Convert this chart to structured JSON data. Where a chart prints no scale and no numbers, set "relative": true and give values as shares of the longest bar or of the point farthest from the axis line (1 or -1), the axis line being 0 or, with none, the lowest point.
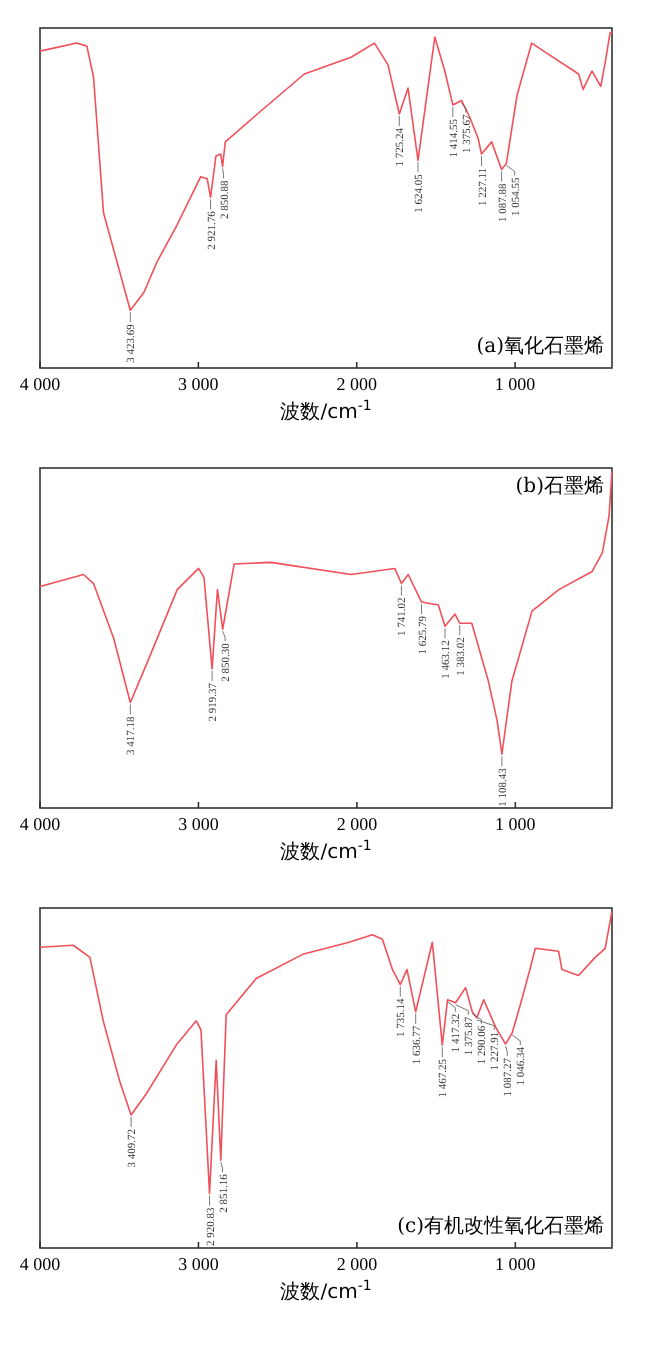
{
  "chart_data": [
    {
      "type": "line",
      "relative": true,
      "tick_labels": "x",
      "xlabel": "波数/cm$^{-1}$",
      "xlim": [
        4000,
        388
      ],
      "xticks": [
        {
          "value": 4000,
          "label": "4 000"
        },
        {
          "value": 3000,
          "label": "3 000"
        },
        {
          "value": 2000,
          "label": "2 000"
        },
        {
          "value": 1000,
          "label": "1 000"
        }
      ],
      "x": [
        4000,
        3768,
        3704,
        3662,
        3599,
        3514,
        3430,
        3345,
        3261,
        3134,
        2986,
        2944,
        2923,
        2889,
        2859,
        2847,
        2830,
        2627,
        2331,
        2036,
        1888,
        1803,
        1731,
        1676,
        1613,
        1507,
        1444,
        1393,
        1338,
        1287,
        1233,
        1212,
        1148,
        1085,
        1055,
        988,
        895,
        810,
        599,
        570,
        515,
        459,
        430,
        400,
        388
      ],
      "series": [
        {
          "color": "#f0505a",
          "values": [
            0.943,
            0.967,
            0.958,
            0.866,
            0.462,
            0.316,
            0.172,
            0.224,
            0.316,
            0.426,
            0.569,
            0.563,
            0.508,
            0.631,
            0.637,
            0.6,
            0.673,
            0.756,
            0.875,
            0.925,
            0.967,
            0.903,
            0.756,
            0.833,
            0.618,
            0.985,
            0.884,
            0.783,
            0.796,
            0.747,
            0.683,
            0.637,
            0.673,
            0.591,
            0.609,
            0.811,
            0.967,
            0.94,
            0.875,
            0.829,
            0.884,
            0.838,
            0.912,
            0.998,
            1.0
          ]
        }
      ],
      "annotations": [
        {
          "text": "3 423.69",
          "x": 3430,
          "y": 0.172
        },
        {
          "text": "2 921.76",
          "x": 2923,
          "y": 0.508
        },
        {
          "text": "2 850.88",
          "x": 2847,
          "y": 0.6
        },
        {
          "text": "1 725.24",
          "x": 1731,
          "y": 0.756
        },
        {
          "text": "1 624.05",
          "x": 1613,
          "y": 0.618
        },
        {
          "text": "1 414.55",
          "x": 1393,
          "y": 0.783
        },
        {
          "text": "1 375.67",
          "x": 1338,
          "y": 0.796
        },
        {
          "text": "1 227.11",
          "x": 1212,
          "y": 0.637
        },
        {
          "text": "1 087.88",
          "x": 1085,
          "y": 0.591
        },
        {
          "text": "1 054.55",
          "x": 1055,
          "y": 0.609
        },
        "(a)氧化石墨烯"
      ]
    },
    {
      "type": "line",
      "relative": true,
      "tick_labels": "x",
      "xlabel": "波数/cm$^{-1}$",
      "xlim": [
        4000,
        390
      ],
      "xticks": [
        {
          "value": 4000,
          "label": "4 000"
        },
        {
          "value": 3000,
          "label": "3 000"
        },
        {
          "value": 2000,
          "label": "2 000"
        },
        {
          "value": 1000,
          "label": "1 000"
        }
      ],
      "x": [
        4000,
        3725,
        3662,
        3535,
        3430,
        3324,
        3134,
        2999,
        2965,
        2914,
        2880,
        2847,
        2775,
        2542,
        2036,
        1761,
        1719,
        1676,
        1592,
        1486,
        1444,
        1381,
        1351,
        1275,
        1170,
        1115,
        1085,
        1022,
        895,
        726,
        515,
        451,
        409,
        390
      ],
      "series": [
        {
          "color": "#f0505a",
          "values": [
            0.659,
            0.695,
            0.668,
            0.505,
            0.314,
            0.432,
            0.65,
            0.713,
            0.686,
            0.414,
            0.65,
            0.532,
            0.726,
            0.731,
            0.695,
            0.713,
            0.668,
            0.695,
            0.613,
            0.604,
            0.541,
            0.577,
            0.55,
            0.55,
            0.377,
            0.26,
            0.16,
            0.377,
            0.586,
            0.65,
            0.704,
            0.759,
            0.868,
            1.0
          ]
        }
      ],
      "annotations": [
        {
          "text": "3 417.18",
          "x": 3430,
          "y": 0.314
        },
        {
          "text": "2 919.37",
          "x": 2914,
          "y": 0.414
        },
        {
          "text": "2 850.30",
          "x": 2847,
          "y": 0.532
        },
        {
          "text": "1 741.02",
          "x": 1719,
          "y": 0.668
        },
        {
          "text": "1 625.79",
          "x": 1592,
          "y": 0.613
        },
        {
          "text": "1 463.12",
          "x": 1444,
          "y": 0.541
        },
        {
          "text": "1 383.02",
          "x": 1351,
          "y": 0.55
        },
        {
          "text": "1 108.43",
          "x": 1085,
          "y": 0.16
        },
        "(b)石墨烯"
      ]
    },
    {
      "type": "line",
      "relative": true,
      "tick_labels": "x",
      "xlabel": "波数/cm$^{-1}$",
      "xlim": [
        4000,
        390
      ],
      "xticks": [
        {
          "value": 4000,
          "label": "4 000"
        },
        {
          "value": 3000,
          "label": "3 000"
        },
        {
          "value": 2000,
          "label": "2 000"
        },
        {
          "value": 1000,
          "label": "1 000"
        }
      ],
      "x": [
        4000,
        3790,
        3685,
        3601,
        3496,
        3425,
        3329,
        3140,
        3014,
        2984,
        2930,
        2888,
        2859,
        2825,
        2636,
        2342,
        2049,
        1902,
        1839,
        1776,
        1726,
        1684,
        1629,
        1524,
        1461,
        1428,
        1377,
        1314,
        1272,
        1243,
        1200,
        1125,
        1062,
        1020,
        965,
        903,
        874,
        727,
        706,
        601,
        496,
        433,
        391
      ],
      "series": [
        {
          "color": "#f0505a",
          "values": [
            0.895,
            0.901,
            0.865,
            0.676,
            0.495,
            0.396,
            0.459,
            0.604,
            0.676,
            0.649,
            0.162,
            0.559,
            0.261,
            0.694,
            0.802,
            0.874,
            0.91,
            0.932,
            0.919,
            0.829,
            0.784,
            0.829,
            0.703,
            0.91,
            0.604,
            0.739,
            0.73,
            0.775,
            0.703,
            0.685,
            0.739,
            0.658,
            0.607,
            0.64,
            0.73,
            0.838,
            0.892,
            0.883,
            0.829,
            0.811,
            0.865,
            0.892,
            1.0
          ]
        }
      ],
      "annotations": [
        {
          "text": "3 409.72",
          "x": 3425,
          "y": 0.396
        },
        {
          "text": "2 920.83",
          "x": 2930,
          "y": 0.162
        },
        {
          "text": "2 851.16",
          "x": 2859,
          "y": 0.261
        },
        {
          "text": "1 735.14",
          "x": 1726,
          "y": 0.784
        },
        {
          "text": "1 636.77",
          "x": 1629,
          "y": 0.703
        },
        {
          "text": "1 467.25",
          "x": 1461,
          "y": 0.604
        },
        {
          "text": "1 417.32",
          "x": 1428,
          "y": 0.739
        },
        {
          "text": "1 375.87",
          "x": 1377,
          "y": 0.73
        },
        {
          "text": "1 290.06",
          "x": 1272,
          "y": 0.703
        },
        {
          "text": "1 227.91",
          "x": 1243,
          "y": 0.685
        },
        {
          "text": "1 087.27",
          "x": 1062,
          "y": 0.607
        },
        {
          "text": "1 046.34",
          "x": 1020,
          "y": 0.64
        },
        "(c)有机改性氧化石墨烯"
      ]
    }
  ]
}
